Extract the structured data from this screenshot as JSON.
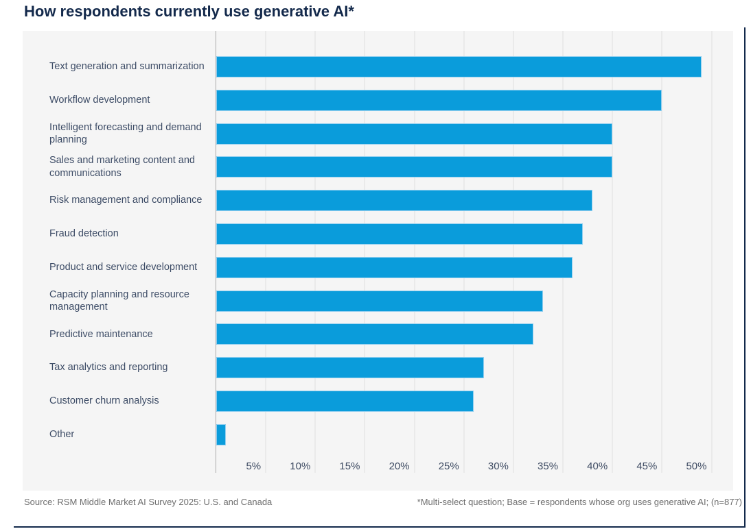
{
  "title": "How respondents currently use generative AI*",
  "footer": {
    "source": "Source: RSM Middle Market AI Survey 2025: U.S. and Canada",
    "note": "*Multi-select question; Base = respondents whose org uses generative AI; (n=877)"
  },
  "chart_data": {
    "type": "bar",
    "orientation": "horizontal",
    "title": "How respondents currently use generative AI*",
    "categories": [
      "Text generation and summarization",
      "Workflow development",
      "Intelligent forecasting and demand planning",
      "Sales and marketing content and communications",
      "Risk management and compliance",
      "Fraud detection",
      "Product and service development",
      "Capacity planning and resource management",
      "Predictive maintenance",
      "Tax analytics and reporting",
      "Customer churn analysis",
      "Other"
    ],
    "values": [
      49,
      45,
      40,
      40,
      38,
      37,
      36,
      33,
      32,
      27,
      26,
      1
    ],
    "unit": "%",
    "xlim": [
      0,
      52
    ],
    "x_tick_values": [
      5,
      10,
      15,
      20,
      25,
      30,
      35,
      40,
      45,
      50
    ],
    "x_tick_labels": [
      "5%",
      "10%",
      "15%",
      "20%",
      "25%",
      "30%",
      "35%",
      "40%",
      "45%",
      "50%"
    ],
    "grid": true,
    "legend": false,
    "bar_color": "#0a9cdb",
    "bar_border_color": "#93cfef",
    "panel_background": "#f5f5f5",
    "gridline_color": "#eaeaea",
    "axis_line_color": "#a9a9a9",
    "title_color": "#13294b",
    "label_color": "#3d4c66",
    "footer_color": "#6e6e6e",
    "frame_color": "#13294b"
  }
}
